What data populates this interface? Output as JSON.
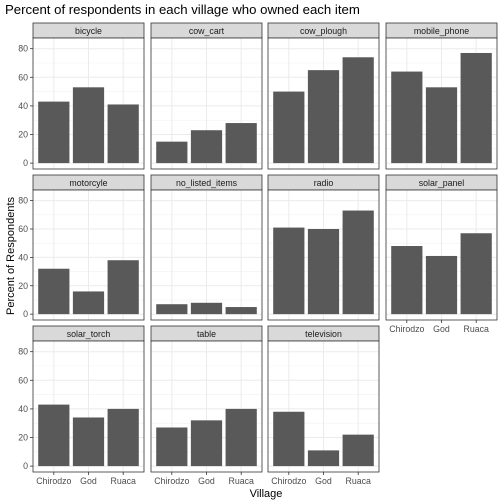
{
  "chart_data": {
    "type": "bar",
    "title": "Percent of respondents in each village who owned each item",
    "xlabel": "Village",
    "ylabel": "Percent of Respondents",
    "categories": [
      "Chirodzo",
      "God",
      "Ruaca"
    ],
    "ylim": [
      0,
      85
    ],
    "yticks": [
      0,
      20,
      40,
      60,
      80
    ],
    "grid": true,
    "facet_columns": 4,
    "bar_color": "#595959",
    "strip_color": "#d9d9d9",
    "panels": [
      {
        "name": "bicycle",
        "values": [
          43,
          53,
          41
        ]
      },
      {
        "name": "cow_cart",
        "values": [
          15,
          23,
          28
        ]
      },
      {
        "name": "cow_plough",
        "values": [
          50,
          65,
          74
        ]
      },
      {
        "name": "mobile_phone",
        "values": [
          64,
          53,
          77
        ]
      },
      {
        "name": "motorcyle",
        "values": [
          32,
          16,
          38
        ]
      },
      {
        "name": "no_listed_items",
        "values": [
          7,
          8,
          5
        ]
      },
      {
        "name": "radio",
        "values": [
          61,
          60,
          73
        ]
      },
      {
        "name": "solar_panel",
        "values": [
          48,
          41,
          57
        ]
      },
      {
        "name": "solar_torch",
        "values": [
          43,
          34,
          40
        ]
      },
      {
        "name": "table",
        "values": [
          27,
          32,
          40
        ]
      },
      {
        "name": "television",
        "values": [
          38,
          11,
          22
        ]
      }
    ]
  }
}
